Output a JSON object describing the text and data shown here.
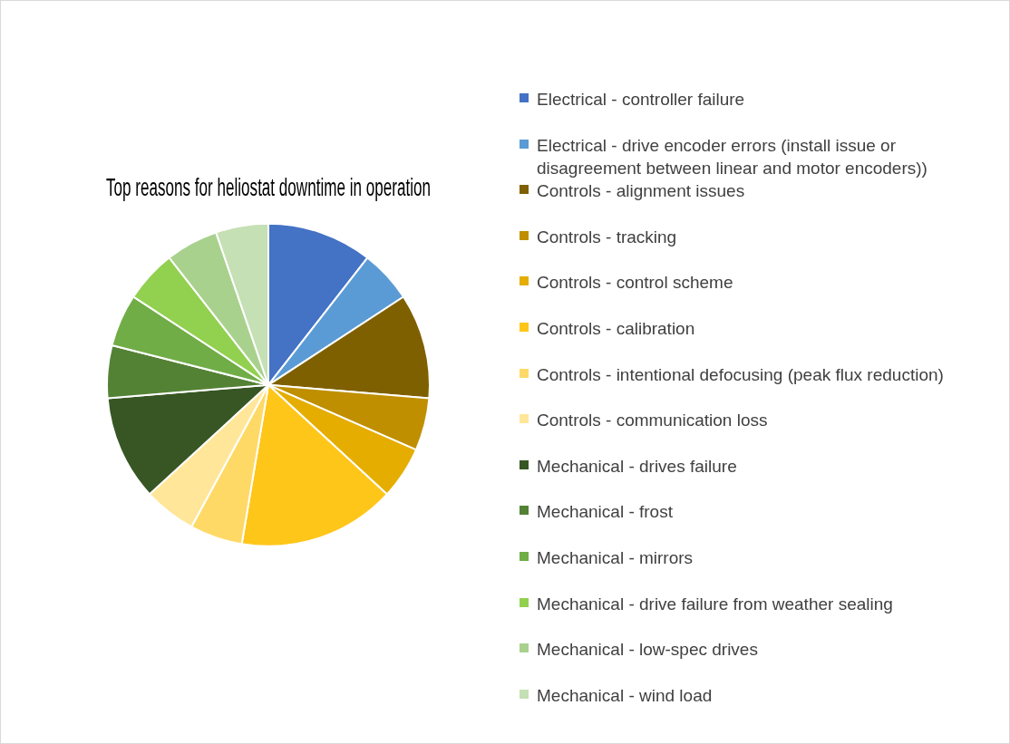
{
  "chart_data": {
    "type": "pie",
    "title": "Top reasons for heliostat downtime in operation",
    "categories": [
      "Electrical - controller failure",
      "Electrical - drive encoder errors (install issue or disagreement between linear and motor encoders))",
      "Controls - alignment issues",
      "Controls - tracking",
      "Controls - control scheme",
      "Controls - calibration",
      "Controls - intentional defocusing (peak flux reduction)",
      "Controls - communication loss",
      "Mechanical - drives failure",
      "Mechanical - frost",
      "Mechanical - mirrors",
      "Mechanical - drive failure from weather sealing",
      "Mechanical - low-spec drives",
      "Mechanical - wind load"
    ],
    "values": [
      10.53,
      5.26,
      10.53,
      5.26,
      5.26,
      15.79,
      5.26,
      5.26,
      10.53,
      5.26,
      5.26,
      5.26,
      5.26,
      5.26
    ],
    "colors": [
      "#4472c4",
      "#5b9bd5",
      "#7f6000",
      "#bf8f00",
      "#e5ad00",
      "#ffc61a",
      "#ffd966",
      "#ffe699",
      "#375623",
      "#548235",
      "#70ad47",
      "#92d050",
      "#a9d18e",
      "#c5e0b4"
    ],
    "legend": "right"
  }
}
